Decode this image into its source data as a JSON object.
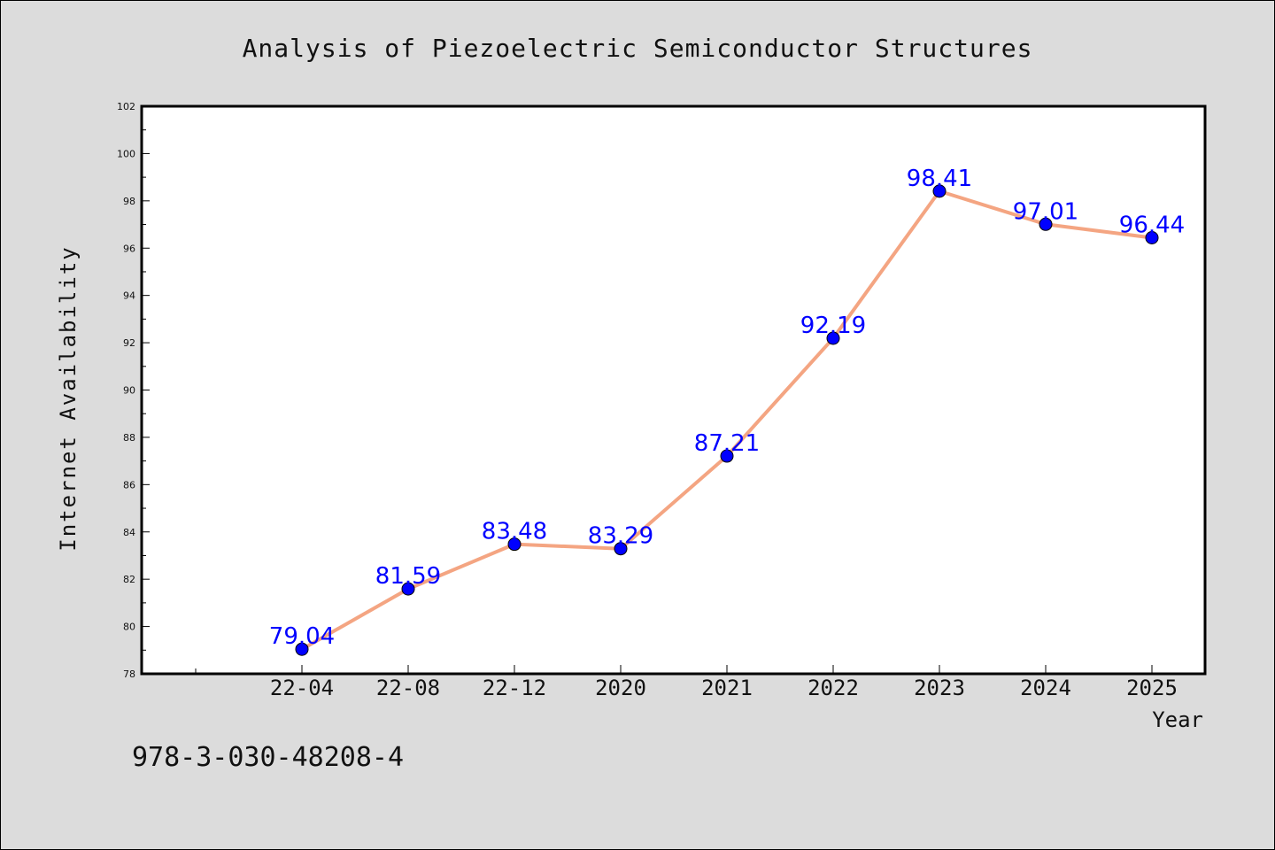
{
  "chart_data": {
    "type": "line",
    "title": "Analysis of Piezoelectric Semiconductor Structures",
    "xlabel": "Year",
    "ylabel": "Internet Availability",
    "categories": [
      "22-04",
      "22-08",
      "22-12",
      "2020",
      "2021",
      "2022",
      "2023",
      "2024",
      "2025"
    ],
    "values": [
      79.04,
      81.59,
      83.48,
      83.29,
      87.21,
      92.19,
      98.41,
      97.01,
      96.44
    ],
    "data_labels": [
      "79.04",
      "81.59",
      "83.48",
      "83.29",
      "87.21",
      "92.19",
      "98.41",
      "97.01",
      "96.44"
    ],
    "ylim": [
      78,
      102
    ],
    "yticks": [
      78,
      80,
      82,
      84,
      86,
      88,
      90,
      92,
      94,
      96,
      98,
      100,
      102
    ],
    "ytick_labels": [
      "78",
      "80",
      "82",
      "84",
      "86",
      "88",
      "90",
      "92",
      "94",
      "96",
      "98",
      "100",
      "102"
    ],
    "grid": false,
    "line_color": "#f4a582",
    "marker_color": "#0000ff",
    "label_color": "#0000ff",
    "frame_background": "#ffffff",
    "page_background": "#dcdcdc"
  },
  "footer_text": "978-3-030-48208-4"
}
